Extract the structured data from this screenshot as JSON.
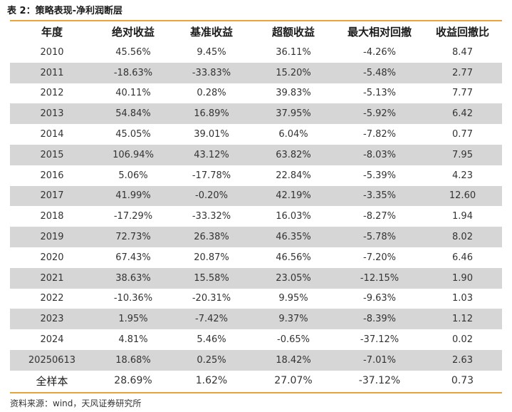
{
  "title": "表 2：策略表现-净利润断层",
  "source": "资料来源：wind，天风证券研究所",
  "accent_color": "#e8a33a",
  "stripe_color": "#d6d6d6",
  "table": {
    "headers": [
      "年度",
      "绝对收益",
      "基准收益",
      "超额收益",
      "最大相对回撤",
      "收益回撤比"
    ],
    "rows": [
      [
        "2010",
        "45.56%",
        "9.45%",
        "36.11%",
        "-4.26%",
        "8.47"
      ],
      [
        "2011",
        "-18.63%",
        "-33.83%",
        "15.20%",
        "-5.48%",
        "2.77"
      ],
      [
        "2012",
        "40.11%",
        "0.28%",
        "39.83%",
        "-5.13%",
        "7.77"
      ],
      [
        "2013",
        "54.84%",
        "16.89%",
        "37.95%",
        "-5.92%",
        "6.42"
      ],
      [
        "2014",
        "45.05%",
        "39.01%",
        "6.04%",
        "-7.82%",
        "0.77"
      ],
      [
        "2015",
        "106.94%",
        "43.12%",
        "63.82%",
        "-8.03%",
        "7.95"
      ],
      [
        "2016",
        "5.06%",
        "-17.78%",
        "22.84%",
        "-5.39%",
        "4.23"
      ],
      [
        "2017",
        "41.99%",
        "-0.20%",
        "42.19%",
        "-3.35%",
        "12.60"
      ],
      [
        "2018",
        "-17.29%",
        "-33.32%",
        "16.03%",
        "-8.27%",
        "1.94"
      ],
      [
        "2019",
        "72.73%",
        "26.38%",
        "46.35%",
        "-5.78%",
        "8.02"
      ],
      [
        "2020",
        "67.43%",
        "20.87%",
        "46.56%",
        "-7.20%",
        "6.46"
      ],
      [
        "2021",
        "38.63%",
        "15.58%",
        "23.05%",
        "-12.15%",
        "1.90"
      ],
      [
        "2022",
        "-10.36%",
        "-20.31%",
        "9.95%",
        "-9.63%",
        "1.03"
      ],
      [
        "2023",
        "1.95%",
        "-7.42%",
        "9.37%",
        "-8.39%",
        "1.12"
      ],
      [
        "2024",
        "4.81%",
        "5.46%",
        "-0.65%",
        "-37.12%",
        "0.02"
      ],
      [
        "20250613",
        "18.68%",
        "0.25%",
        "18.42%",
        "-7.01%",
        "2.63"
      ],
      [
        "全样本",
        "28.69%",
        "1.62%",
        "27.07%",
        "-37.12%",
        "0.73"
      ]
    ]
  }
}
